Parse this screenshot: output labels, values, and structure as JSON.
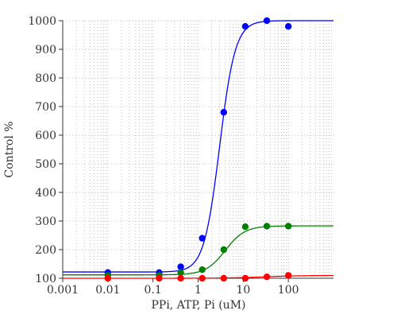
{
  "chart_data": {
    "type": "scatter",
    "title": "",
    "xlabel": "PPi, ATP, Pi (uM)",
    "ylabel": "Control %",
    "x_scale": "log",
    "xlim": [
      0.001,
      1000
    ],
    "ylim": [
      100,
      1000
    ],
    "grid": true,
    "x_ticks": [
      "0.001",
      "0.01",
      "0.1",
      "1",
      "10",
      "100"
    ],
    "y_ticks": [
      "100",
      "200",
      "300",
      "400",
      "500",
      "600",
      "700",
      "800",
      "900",
      "1000"
    ],
    "series": [
      {
        "color": "#0000ff",
        "points": [
          [
            0.01,
            120
          ],
          [
            0.137,
            120
          ],
          [
            0.412,
            140
          ],
          [
            1.235,
            240
          ],
          [
            3.704,
            680
          ],
          [
            11.11,
            980
          ],
          [
            33.33,
            1000
          ],
          [
            100,
            980
          ]
        ],
        "fit": {
          "bottom": 122,
          "top": 1000,
          "ec50": 3.0,
          "hill": 2.5
        }
      },
      {
        "color": "#008000",
        "points": [
          [
            0.01,
            110
          ],
          [
            0.137,
            110
          ],
          [
            0.412,
            120
          ],
          [
            1.235,
            130
          ],
          [
            3.704,
            200
          ],
          [
            11.11,
            280
          ],
          [
            33.33,
            282
          ],
          [
            100,
            282
          ]
        ],
        "fit": {
          "bottom": 112,
          "top": 283,
          "ec50": 4.0,
          "hill": 2.0
        }
      },
      {
        "color": "#ff0000",
        "points": [
          [
            0.01,
            100
          ],
          [
            0.137,
            100
          ],
          [
            0.412,
            100
          ],
          [
            1.235,
            100
          ],
          [
            3.704,
            100
          ],
          [
            11.11,
            100
          ],
          [
            33.33,
            105
          ],
          [
            100,
            110
          ]
        ],
        "fit": {
          "bottom": 100,
          "top": 110,
          "ec50": 30,
          "hill": 1.0
        }
      }
    ]
  }
}
